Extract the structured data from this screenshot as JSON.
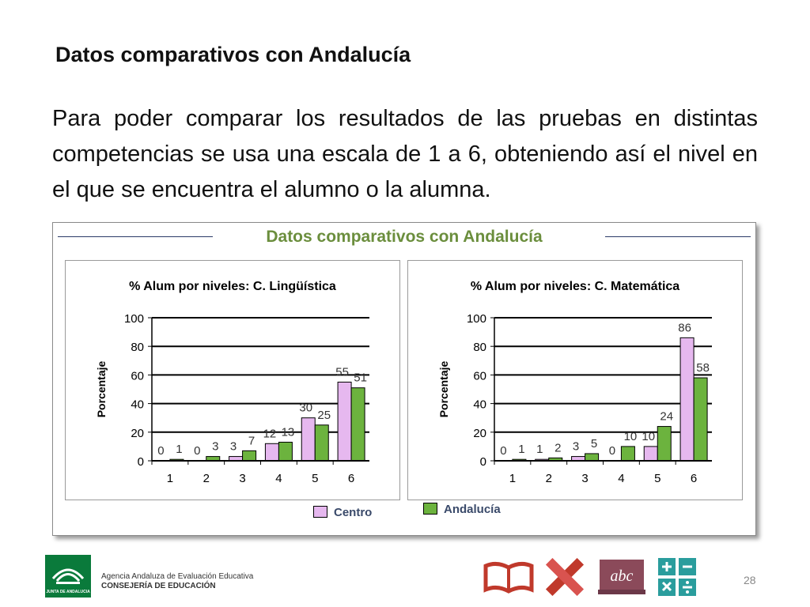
{
  "slide": {
    "title": "Datos comparativos con Andalucía",
    "body": "Para poder comparar los resultados de las pruebas en distintas competencias se usa una escala de 1 a 6, obteniendo así el nivel en el que se encuentra el alumno o la alumna.",
    "page_number": "28"
  },
  "figure": {
    "title": "Datos comparativos con Andalucía"
  },
  "chart_data": [
    {
      "type": "bar",
      "title": "% Alum por niveles: C. Lingüística",
      "ylabel": "Porcentaje",
      "xlabel": "",
      "categories": [
        "1",
        "2",
        "3",
        "4",
        "5",
        "6"
      ],
      "ylim": [
        0,
        100
      ],
      "yticks": [
        "0",
        "20",
        "40",
        "60",
        "80",
        "100"
      ],
      "grid": true,
      "series": [
        {
          "name": "Centro",
          "values": [
            0,
            0,
            3,
            12,
            30,
            55
          ],
          "color": "#e6b8ef"
        },
        {
          "name": "Andalucía",
          "values": [
            1,
            3,
            7,
            13,
            25,
            51
          ],
          "color": "#6cb33e"
        }
      ]
    },
    {
      "type": "bar",
      "title": "% Alum por niveles: C. Matemática",
      "ylabel": "Porcentaje",
      "xlabel": "",
      "categories": [
        "1",
        "2",
        "3",
        "4",
        "5",
        "6"
      ],
      "ylim": [
        0,
        100
      ],
      "yticks": [
        "0",
        "20",
        "40",
        "60",
        "80",
        "100"
      ],
      "grid": true,
      "series": [
        {
          "name": "Centro",
          "values": [
            0,
            1,
            3,
            0,
            10,
            86
          ],
          "color": "#e6b8ef"
        },
        {
          "name": "Andalucía",
          "values": [
            1,
            2,
            5,
            10,
            24,
            58
          ],
          "color": "#6cb33e"
        }
      ]
    }
  ],
  "legend": {
    "placement": "bottom",
    "items": [
      {
        "label": "Centro",
        "color": "#e6b8ef"
      },
      {
        "label": "Andalucía",
        "color": "#6cb33e"
      }
    ]
  },
  "footer": {
    "agency_line1": "Agencia Andaluza de Evaluación Educativa",
    "agency_line2": "CONSEJERÍA DE EDUCACIÓN",
    "logo_text": "JUNTA DE ANDALUCIA",
    "icons": [
      "book-icon",
      "pencil-ruler-icon",
      "abc-board-icon",
      "calculator-icon"
    ]
  }
}
